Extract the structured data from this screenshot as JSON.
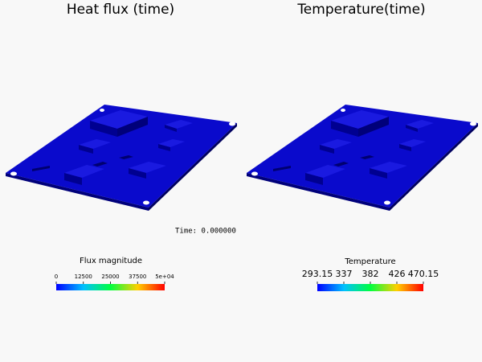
{
  "panels": [
    {
      "title": "Heat flux (time)",
      "colorbar": {
        "title": "Flux magnitude",
        "ticks": [
          "0",
          "12500",
          "25000",
          "37500",
          "5e+04"
        ]
      }
    },
    {
      "title": "Temperature(time)",
      "colorbar": {
        "title": "Temperature",
        "ticks": [
          "293.15",
          "337",
          "382",
          "426",
          "470.15"
        ]
      }
    }
  ],
  "time_label": "Time: 0.000000"
}
